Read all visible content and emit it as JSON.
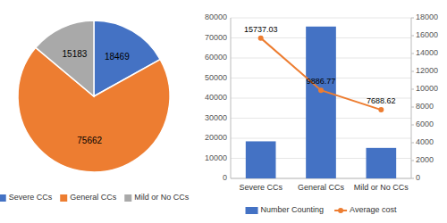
{
  "chart_data": [
    {
      "type": "pie",
      "categories": [
        "Severe CCs",
        "General CCs",
        "Mild or No CCs"
      ],
      "values": [
        18469,
        75662,
        15183
      ],
      "colors": [
        "#4472C4",
        "#ED7D31",
        "#A9A9A9"
      ],
      "data_labels": true,
      "legend": "bottom"
    },
    {
      "type": "bar",
      "categories": [
        "Severe CCs",
        "General CCs",
        "Mild or No CCs"
      ],
      "series": [
        {
          "name": "Number Counting",
          "type": "bar",
          "color": "#4472C4",
          "values": [
            18469,
            75662,
            15183
          ]
        },
        {
          "name": "Average cost",
          "type": "line",
          "color": "#ED7D31",
          "marker": "circle",
          "axis": "y2",
          "data_labels": true,
          "values": [
            15737.03,
            9886.77,
            7688.62
          ]
        }
      ],
      "ylim": [
        0,
        80000
      ],
      "yticks": [
        0,
        10000,
        20000,
        30000,
        40000,
        50000,
        60000,
        70000,
        80000
      ],
      "y2lim": [
        0,
        18000
      ],
      "y2ticks": [
        0,
        2000,
        4000,
        6000,
        8000,
        10000,
        12000,
        14000,
        16000,
        18000
      ],
      "grid": true,
      "legend": "bottom"
    }
  ]
}
